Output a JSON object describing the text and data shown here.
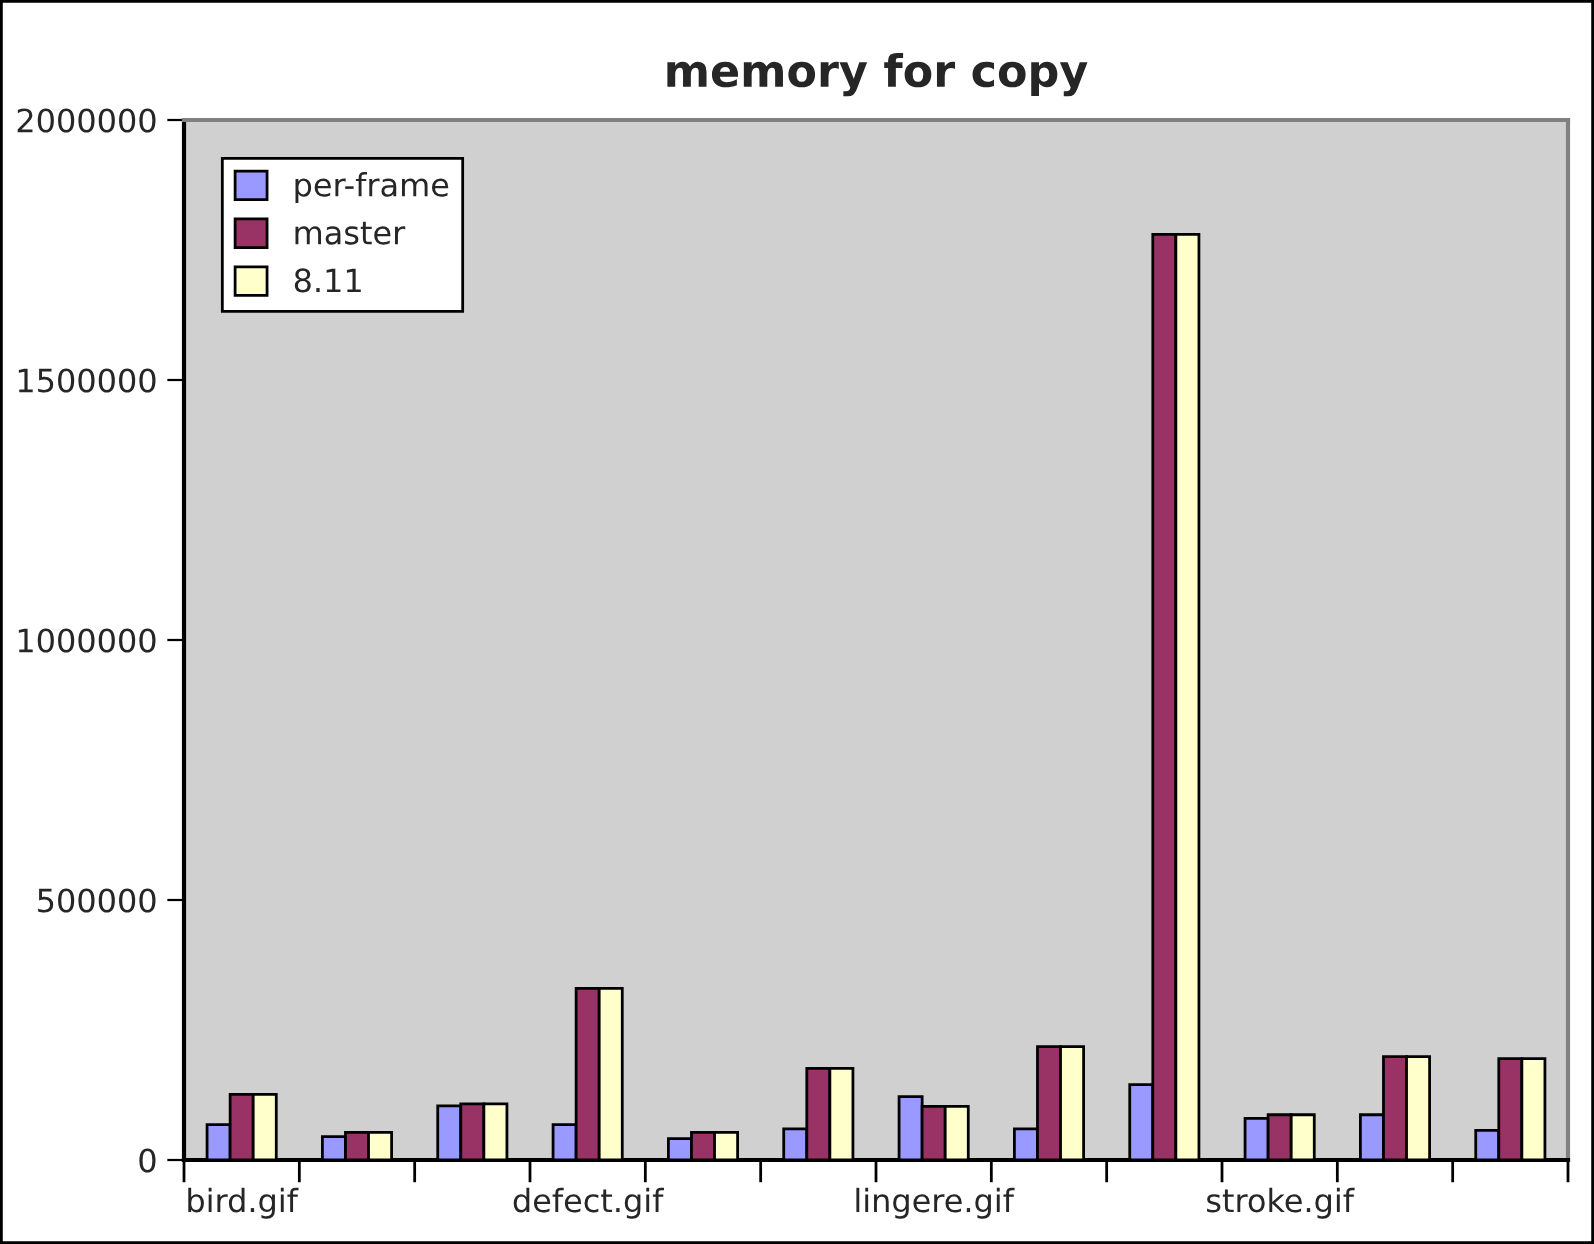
{
  "chart_data": {
    "type": "bar",
    "title": "memory for copy",
    "categories": [
      "bird.gif",
      null,
      null,
      "defect.gif",
      null,
      null,
      "lingere.gif",
      null,
      null,
      "stroke.gif",
      null,
      null
    ],
    "series": [
      {
        "name": "per-frame",
        "color": "#9999ff",
        "values": [
          68000,
          45000,
          104000,
          68000,
          41000,
          60000,
          122000,
          60000,
          145000,
          80000,
          87000,
          57000
        ]
      },
      {
        "name": "master",
        "color": "#993366",
        "values": [
          126000,
          53000,
          108000,
          330000,
          53000,
          176000,
          103000,
          218000,
          1780000,
          87000,
          199000,
          195000
        ]
      },
      {
        "name": "8.11",
        "color": "#ffffcc",
        "values": [
          126000,
          53000,
          108000,
          330000,
          53000,
          176000,
          103000,
          218000,
          1780000,
          87000,
          199000,
          195000
        ]
      }
    ],
    "ylim": [
      0,
      2000000
    ],
    "yticks": [
      0,
      500000,
      1000000,
      1500000,
      2000000
    ],
    "legend": "top left"
  }
}
